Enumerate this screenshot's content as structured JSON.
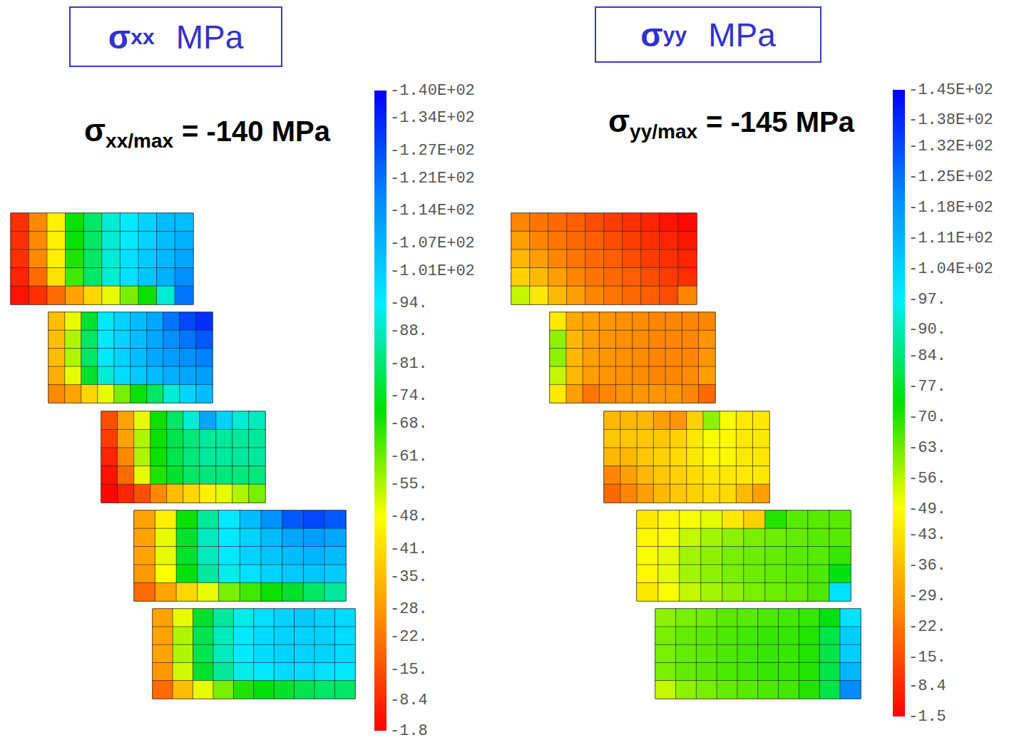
{
  "chart_data": [
    {
      "type": "heatmap",
      "title": {
        "symbol": "σ",
        "subscript": "xx",
        "unit": "MPa"
      },
      "annotation": {
        "symbol": "σ",
        "subscript": "xx/max",
        "text": "= -140 MPa"
      },
      "tick_labels": false,
      "colorbar": {
        "range": [
          -140,
          -1.8
        ],
        "ticks": [
          {
            "value": -140,
            "label": "-1.40E+02"
          },
          {
            "value": -134,
            "label": "-1.34E+02"
          },
          {
            "value": -127,
            "label": "-1.27E+02"
          },
          {
            "value": -121,
            "label": "-1.21E+02"
          },
          {
            "value": -114,
            "label": "-1.14E+02"
          },
          {
            "value": -107,
            "label": "-1.07E+02"
          },
          {
            "value": -101,
            "label": "-1.01E+02"
          },
          {
            "value": -94,
            "label": "-94."
          },
          {
            "value": -88,
            "label": "-88."
          },
          {
            "value": -81,
            "label": "-81."
          },
          {
            "value": -74,
            "label": "-74."
          },
          {
            "value": -68,
            "label": "-68."
          },
          {
            "value": -61,
            "label": "-61."
          },
          {
            "value": -55,
            "label": "-55."
          },
          {
            "value": -48,
            "label": "-48."
          },
          {
            "value": -41,
            "label": "-41."
          },
          {
            "value": -35,
            "label": "-35."
          },
          {
            "value": -28,
            "label": "-28."
          },
          {
            "value": -22,
            "label": "-22."
          },
          {
            "value": -15,
            "label": "-15."
          },
          -8.4,
          -1.8
        ]
      },
      "cells": [
        [
          [
            -10,
            -25,
            -45,
            -70,
            -80,
            -90,
            -95,
            -100,
            -105,
            -105
          ],
          [
            -10,
            -25,
            -45,
            -70,
            -80,
            -90,
            -95,
            -100,
            -105,
            -108
          ],
          [
            -10,
            -25,
            -45,
            -68,
            -80,
            -90,
            -97,
            -102,
            -106,
            -110
          ],
          [
            -8,
            -20,
            -42,
            -65,
            -80,
            -90,
            -97,
            -103,
            -108,
            -115
          ],
          [
            -5,
            -10,
            -20,
            -30,
            -40,
            -50,
            -60,
            -70,
            -90,
            -120
          ]
        ],
        [
          [
            -35,
            -50,
            -75,
            -95,
            -100,
            -105,
            -110,
            -120,
            -128,
            -132
          ],
          [
            -35,
            -55,
            -80,
            -95,
            -100,
            -105,
            -110,
            -115,
            -120,
            -125
          ],
          [
            -35,
            -55,
            -80,
            -95,
            -100,
            -105,
            -110,
            -112,
            -115,
            -118
          ],
          [
            -32,
            -50,
            -75,
            -90,
            -98,
            -102,
            -105,
            -108,
            -110,
            -112
          ],
          [
            -25,
            -30,
            -40,
            -50,
            -60,
            -70,
            -80,
            -90,
            -100,
            -105
          ]
        ],
        [
          [
            -15,
            -30,
            -50,
            -70,
            -80,
            -90,
            -110,
            -100,
            -90,
            -88
          ],
          [
            -12,
            -30,
            -55,
            -70,
            -78,
            -82,
            -85,
            -85,
            -85,
            -85
          ],
          [
            -8,
            -25,
            -55,
            -70,
            -78,
            -82,
            -85,
            -85,
            -85,
            -85
          ],
          [
            -5,
            -20,
            -50,
            -68,
            -75,
            -80,
            -82,
            -82,
            -82,
            -82
          ],
          [
            -3,
            -8,
            -15,
            -25,
            -35,
            -40,
            -45,
            -50,
            -55,
            -60
          ]
        ],
        [
          [
            -30,
            -45,
            -70,
            -85,
            -95,
            -105,
            -115,
            -125,
            -128,
            -125
          ],
          [
            -30,
            -50,
            -75,
            -88,
            -95,
            -100,
            -105,
            -110,
            -112,
            -110
          ],
          [
            -30,
            -50,
            -75,
            -88,
            -95,
            -100,
            -103,
            -105,
            -107,
            -105
          ],
          [
            -28,
            -48,
            -72,
            -85,
            -92,
            -97,
            -100,
            -102,
            -103,
            -102
          ],
          [
            -20,
            -30,
            -40,
            -50,
            -60,
            -65,
            -70,
            -75,
            -80,
            -85
          ]
        ],
        [
          [
            -30,
            -50,
            -75,
            -85,
            -92,
            -97,
            -100,
            -102,
            -100,
            -98
          ],
          [
            -30,
            -55,
            -78,
            -88,
            -95,
            -98,
            -100,
            -100,
            -100,
            -98
          ],
          [
            -30,
            -55,
            -78,
            -88,
            -95,
            -98,
            -100,
            -100,
            -100,
            -98
          ],
          [
            -28,
            -52,
            -75,
            -85,
            -92,
            -95,
            -98,
            -98,
            -97,
            -95
          ],
          [
            -20,
            -35,
            -50,
            -60,
            -68,
            -72,
            -75,
            -78,
            -80,
            -80
          ]
        ]
      ]
    },
    {
      "type": "heatmap",
      "title": {
        "symbol": "σ",
        "subscript": "yy",
        "unit": "MPa"
      },
      "annotation": {
        "symbol": "σ",
        "subscript": "yy/max",
        "text": "= -145 MPa"
      },
      "tick_labels": false,
      "colorbar": {
        "range": [
          -145,
          -1.5
        ],
        "ticks": [
          {
            "value": -145,
            "label": "-1.45E+02"
          },
          {
            "value": -138,
            "label": "-1.38E+02"
          },
          {
            "value": -132,
            "label": "-1.32E+02"
          },
          {
            "value": -125,
            "label": "-1.25E+02"
          },
          {
            "value": -118,
            "label": "-1.18E+02"
          },
          {
            "value": -111,
            "label": "-1.11E+02"
          },
          {
            "value": -104,
            "label": "-1.04E+02"
          },
          {
            "value": -97,
            "label": "-97."
          },
          {
            "value": -90,
            "label": "-90."
          },
          {
            "value": -84,
            "label": "-84."
          },
          {
            "value": -77,
            "label": "-77."
          },
          {
            "value": -70,
            "label": "-70."
          },
          {
            "value": -63,
            "label": "-63."
          },
          {
            "value": -56,
            "label": "-56."
          },
          {
            "value": -49,
            "label": "-49."
          },
          {
            "value": -43,
            "label": "-43."
          },
          {
            "value": -36,
            "label": "-36."
          },
          {
            "value": -29,
            "label": "-29."
          },
          {
            "value": -22,
            "label": "-22."
          },
          {
            "value": -15,
            "label": "-15."
          },
          -8.4,
          -1.5
        ]
      },
      "cells": [
        [
          [
            -25,
            -22,
            -20,
            -18,
            -15,
            -12,
            -10,
            -8,
            -5,
            -3
          ],
          [
            -30,
            -25,
            -22,
            -20,
            -18,
            -15,
            -12,
            -10,
            -8,
            -5
          ],
          [
            -35,
            -30,
            -25,
            -22,
            -20,
            -18,
            -15,
            -12,
            -10,
            -8
          ],
          [
            -40,
            -35,
            -30,
            -25,
            -22,
            -20,
            -18,
            -15,
            -12,
            -10
          ],
          [
            -55,
            -45,
            -35,
            -30,
            -25,
            -22,
            -20,
            -18,
            -15,
            -25
          ]
        ],
        [
          [
            -45,
            -32,
            -30,
            -28,
            -27,
            -26,
            -25,
            -25,
            -25,
            -25
          ],
          [
            -60,
            -35,
            -30,
            -28,
            -27,
            -26,
            -25,
            -25,
            -25,
            -28
          ],
          [
            -60,
            -35,
            -30,
            -28,
            -27,
            -26,
            -25,
            -25,
            -25,
            -28
          ],
          [
            -55,
            -35,
            -30,
            -28,
            -27,
            -26,
            -25,
            -25,
            -26,
            -30
          ],
          [
            -45,
            -30,
            -22,
            -25,
            -27,
            -28,
            -28,
            -28,
            -25,
            -20
          ]
        ],
        [
          [
            -35,
            -35,
            -35,
            -30,
            -28,
            -40,
            -60,
            -50,
            -45,
            -45
          ],
          [
            -38,
            -38,
            -38,
            -38,
            -40,
            -45,
            -50,
            -48,
            -45,
            -45
          ],
          [
            -35,
            -35,
            -38,
            -40,
            -42,
            -45,
            -48,
            -48,
            -45,
            -45
          ],
          [
            -25,
            -30,
            -35,
            -38,
            -40,
            -42,
            -45,
            -45,
            -45,
            -45
          ],
          [
            -20,
            -25,
            -30,
            -35,
            -38,
            -40,
            -42,
            -42,
            -35,
            -30
          ]
        ],
        [
          [
            -45,
            -48,
            -50,
            -52,
            -45,
            -40,
            -70,
            -65,
            -65,
            -65
          ],
          [
            -48,
            -50,
            -55,
            -58,
            -60,
            -62,
            -63,
            -64,
            -65,
            -65
          ],
          [
            -50,
            -52,
            -58,
            -60,
            -62,
            -63,
            -64,
            -65,
            -65,
            -68
          ],
          [
            -48,
            -52,
            -58,
            -60,
            -62,
            -63,
            -64,
            -65,
            -66,
            -75
          ],
          [
            -45,
            -50,
            -55,
            -58,
            -60,
            -62,
            -63,
            -64,
            -66,
            -100
          ]
        ],
        [
          [
            -60,
            -62,
            -63,
            -65,
            -65,
            -66,
            -67,
            -68,
            -75,
            -100
          ],
          [
            -62,
            -64,
            -65,
            -66,
            -67,
            -68,
            -68,
            -70,
            -80,
            -105
          ],
          [
            -62,
            -64,
            -65,
            -66,
            -67,
            -68,
            -68,
            -70,
            -80,
            -105
          ],
          [
            -62,
            -64,
            -65,
            -66,
            -67,
            -68,
            -68,
            -70,
            -80,
            -110
          ],
          [
            -55,
            -60,
            -62,
            -64,
            -65,
            -66,
            -67,
            -70,
            -80,
            -120
          ]
        ]
      ]
    }
  ]
}
